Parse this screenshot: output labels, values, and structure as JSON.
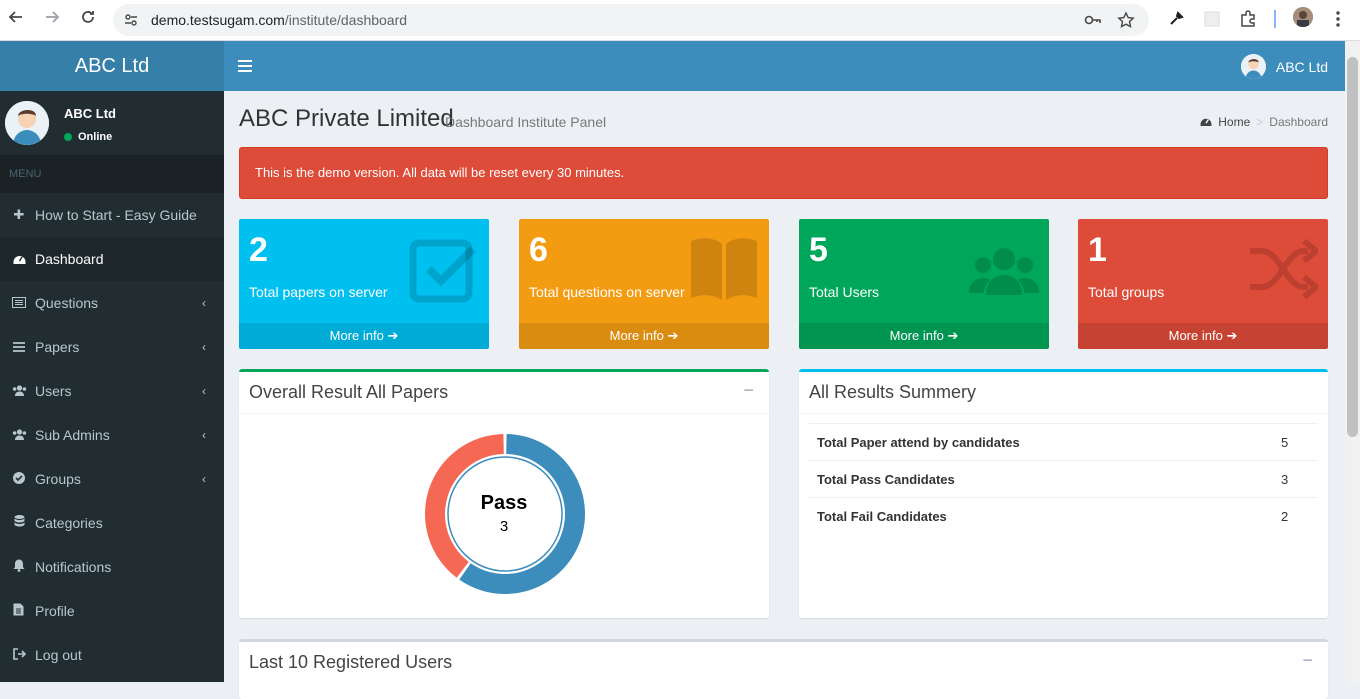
{
  "browser": {
    "url_host": "demo.testsugam.com",
    "url_path": "/institute/dashboard"
  },
  "app": {
    "logo": "ABC Ltd",
    "top_user": "ABC Ltd"
  },
  "sidebar": {
    "user_name": "ABC Ltd",
    "user_status": "Online",
    "menu_header": "MENU",
    "items": [
      {
        "label": "How to Start - Easy Guide",
        "icon": "plus-icon"
      },
      {
        "label": "Dashboard",
        "icon": "dashboard-icon"
      },
      {
        "label": "Questions",
        "icon": "list-icon"
      },
      {
        "label": "Papers",
        "icon": "bars-icon"
      },
      {
        "label": "Users",
        "icon": "users-icon"
      },
      {
        "label": "Sub Admins",
        "icon": "users-icon"
      },
      {
        "label": "Groups",
        "icon": "check-circle-icon"
      },
      {
        "label": "Categories",
        "icon": "database-icon"
      },
      {
        "label": "Notifications",
        "icon": "bell-icon"
      },
      {
        "label": "Profile",
        "icon": "file-icon"
      },
      {
        "label": "Log out",
        "icon": "sign-out-icon"
      }
    ]
  },
  "header": {
    "title": "ABC Private Limited",
    "subtitle": "Dashboard Institute Panel",
    "breadcrumb_home": "Home",
    "breadcrumb_current": "Dashboard"
  },
  "alert": "This is the demo version. All data will be reset every 30 minutes.",
  "stats": [
    {
      "value": "2",
      "label": "Total papers on server",
      "more": "More info",
      "color": "#00c0ef",
      "icon": "checkbox-icon"
    },
    {
      "value": "6",
      "label": "Total questions on server",
      "more": "More info",
      "color": "#f39c12",
      "icon": "book-icon"
    },
    {
      "value": "5",
      "label": "Total Users",
      "more": "More info",
      "color": "#00a65a",
      "icon": "users-icon"
    },
    {
      "value": "1",
      "label": "Total groups",
      "more": "More info",
      "color": "#dd4b39",
      "icon": "random-icon"
    }
  ],
  "result_box": {
    "title": "Overall Result All Papers",
    "center_label": "Pass",
    "center_value": "3",
    "chart_data": {
      "type": "pie",
      "categories": [
        "Pass",
        "Fail"
      ],
      "values": [
        3,
        2
      ],
      "colors": [
        "#3c8dbc",
        "#f56954"
      ]
    }
  },
  "summary_box": {
    "title": "All Results Summery",
    "rows": [
      {
        "label": "Total Paper attend by candidates",
        "value": "5"
      },
      {
        "label": "Total Pass Candidates",
        "value": "3"
      },
      {
        "label": "Total Fail Candidates",
        "value": "2"
      }
    ]
  },
  "users_box": {
    "title": "Last 10 Registered Users"
  }
}
